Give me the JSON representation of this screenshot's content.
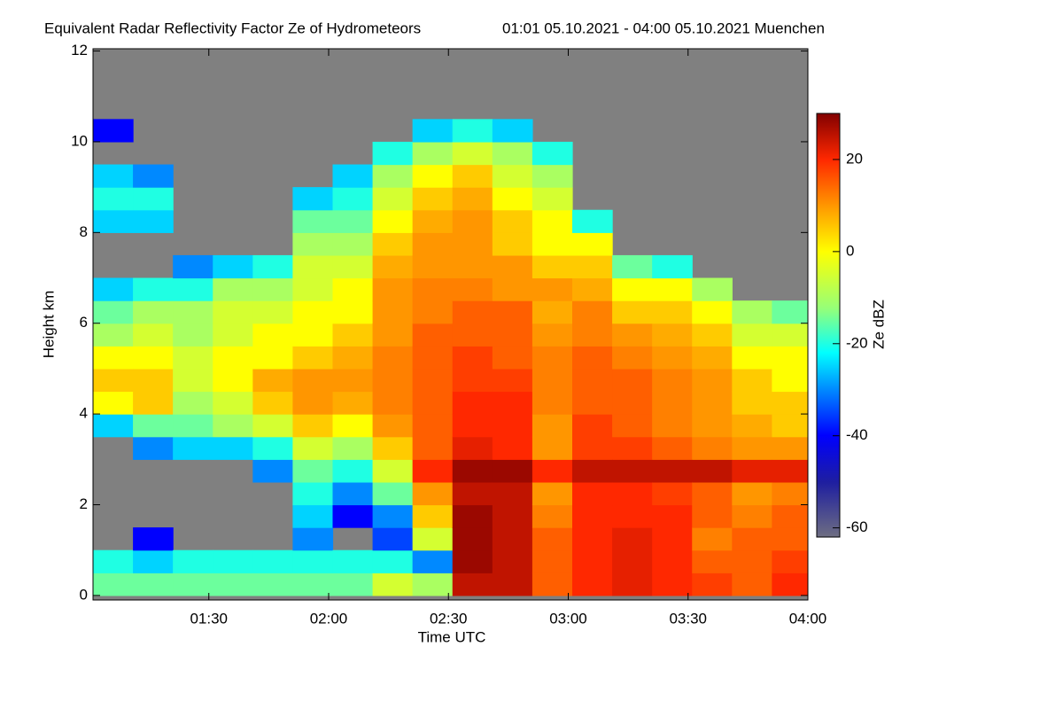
{
  "chart_data": {
    "type": "heatmap",
    "title": "Equivalent Radar Reflectivity Factor Ze of Hydrometeors",
    "subtitle": "01:01 05.10.2021 - 04:00 05.10.2021 Muenchen",
    "x_label": "Time UTC",
    "y_label": "Height km",
    "colorbar_label": "Ze dBZ",
    "colormap": "jet",
    "x": [
      1.1,
      1.2667,
      1.4333,
      1.6,
      1.7667,
      1.9333,
      2.1,
      2.2667,
      2.4333,
      2.6,
      2.7667,
      2.9333,
      3.1,
      3.2667,
      3.4333,
      3.6,
      3.7667,
      3.9333
    ],
    "y": [
      0.25,
      0.75,
      1.25,
      1.75,
      2.25,
      2.75,
      3.25,
      3.75,
      4.25,
      4.75,
      5.25,
      5.75,
      6.25,
      6.75,
      7.25,
      7.75,
      8.25,
      8.75,
      9.25,
      9.75,
      10.25,
      10.75,
      11.25,
      11.75
    ],
    "values": [
      [
        -15,
        -20,
        null,
        null,
        null,
        null,
        null,
        -25,
        0,
        5,
        0,
        -10,
        -15,
        -25,
        null,
        null,
        -25,
        -20,
        -25,
        null,
        -40,
        null,
        null,
        null
      ],
      [
        -15,
        -25,
        -40,
        null,
        null,
        null,
        -30,
        -15,
        5,
        5,
        0,
        -5,
        -10,
        -20,
        null,
        null,
        -25,
        -20,
        -30,
        null,
        null,
        null,
        null,
        null
      ],
      [
        -15,
        -20,
        null,
        null,
        null,
        null,
        -25,
        -15,
        -10,
        -5,
        -5,
        -10,
        -10,
        -20,
        -30,
        null,
        null,
        null,
        null,
        null,
        null,
        null,
        null,
        null
      ],
      [
        -15,
        -20,
        null,
        null,
        null,
        null,
        -25,
        -10,
        -5,
        0,
        0,
        -5,
        -5,
        -10,
        -25,
        null,
        null,
        null,
        null,
        null,
        null,
        null,
        null,
        null
      ],
      [
        -15,
        -20,
        null,
        null,
        null,
        -30,
        -20,
        -5,
        5,
        8,
        0,
        0,
        -5,
        -10,
        -20,
        null,
        null,
        null,
        null,
        null,
        null,
        null,
        null,
        null
      ],
      [
        -15,
        -20,
        -30,
        -25,
        -20,
        -15,
        -5,
        5,
        10,
        10,
        5,
        0,
        0,
        -5,
        -5,
        -10,
        -15,
        -25,
        null,
        null,
        null,
        null,
        null,
        null
      ],
      [
        -15,
        -20,
        null,
        -40,
        -30,
        -20,
        -10,
        0,
        8,
        10,
        8,
        5,
        0,
        0,
        -5,
        -10,
        -15,
        -20,
        -25,
        null,
        null,
        null,
        null,
        null
      ],
      [
        -5,
        -20,
        -35,
        -30,
        -15,
        -5,
        5,
        10,
        12,
        12,
        12,
        10,
        10,
        10,
        8,
        5,
        0,
        -5,
        -10,
        -20,
        null,
        null,
        null,
        null
      ],
      [
        -10,
        -30,
        -5,
        5,
        10,
        20,
        15,
        15,
        15,
        15,
        15,
        15,
        12,
        12,
        10,
        10,
        8,
        5,
        0,
        -10,
        -25,
        null,
        null,
        null
      ],
      [
        25,
        28,
        28,
        28,
        25,
        28,
        22,
        20,
        20,
        18,
        18,
        15,
        15,
        12,
        10,
        10,
        10,
        8,
        5,
        -5,
        -20,
        null,
        null,
        null
      ],
      [
        25,
        25,
        25,
        25,
        25,
        28,
        20,
        20,
        20,
        18,
        15,
        15,
        15,
        10,
        10,
        5,
        5,
        0,
        -5,
        -10,
        -25,
        null,
        null,
        null
      ],
      [
        15,
        15,
        15,
        12,
        10,
        20,
        10,
        10,
        12,
        12,
        12,
        10,
        8,
        10,
        5,
        0,
        0,
        -5,
        -10,
        -20,
        null,
        null,
        null,
        null
      ],
      [
        20,
        20,
        20,
        20,
        20,
        25,
        18,
        18,
        15,
        15,
        15,
        12,
        12,
        8,
        5,
        0,
        -20,
        null,
        null,
        null,
        null,
        null,
        null,
        null
      ],
      [
        22,
        22,
        22,
        20,
        20,
        25,
        18,
        15,
        15,
        15,
        12,
        10,
        5,
        0,
        -15,
        null,
        null,
        null,
        null,
        null,
        null,
        null,
        null,
        null
      ],
      [
        20,
        20,
        20,
        20,
        18,
        25,
        15,
        12,
        12,
        12,
        10,
        8,
        5,
        0,
        -20,
        null,
        null,
        null,
        null,
        null,
        null,
        null,
        null,
        null
      ],
      [
        18,
        15,
        12,
        15,
        15,
        25,
        12,
        10,
        10,
        10,
        8,
        5,
        0,
        -10,
        null,
        null,
        null,
        null,
        null,
        null,
        null,
        null,
        null,
        null
      ],
      [
        15,
        15,
        15,
        12,
        10,
        22,
        10,
        8,
        5,
        5,
        0,
        -5,
        -10,
        null,
        null,
        null,
        null,
        null,
        null,
        null,
        null,
        null,
        null,
        null
      ],
      [
        20,
        18,
        15,
        15,
        12,
        22,
        10,
        5,
        5,
        0,
        0,
        -5,
        -15,
        null,
        null,
        null,
        null,
        null,
        null,
        null,
        null,
        null,
        null,
        null
      ]
    ],
    "xlim": [
      1.0167,
      4.0
    ],
    "xticks": [
      {
        "value": 1.5,
        "label": "01:30"
      },
      {
        "value": 2.0,
        "label": "02:00"
      },
      {
        "value": 2.5,
        "label": "02:30"
      },
      {
        "value": 3.0,
        "label": "03:00"
      },
      {
        "value": 3.5,
        "label": "03:30"
      },
      {
        "value": 4.0,
        "label": "04:00"
      }
    ],
    "ylim": [
      -0.1,
      12.05
    ],
    "yticks": [
      0,
      2,
      4,
      6,
      8,
      10,
      12
    ],
    "clim": [
      -62,
      30
    ],
    "cticks": [
      -60,
      -40,
      -20,
      0,
      20
    ]
  }
}
